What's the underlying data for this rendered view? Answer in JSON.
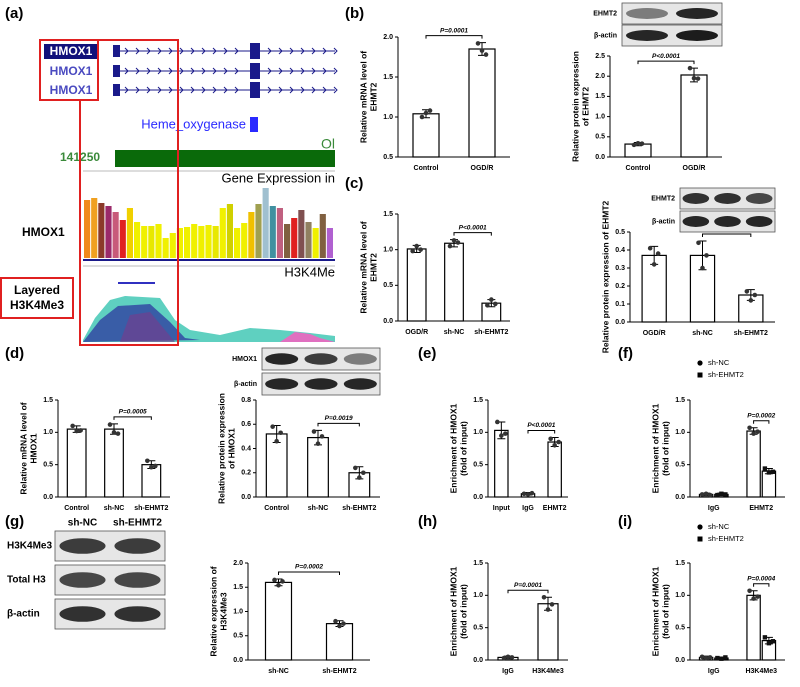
{
  "panel_a": {
    "label": "(a)",
    "transcripts": [
      "HMOX1",
      "HMOX1",
      "HMOX1"
    ],
    "domain": "Heme_oxygenase",
    "track_label": "Ol",
    "position": "141250",
    "expression_title": "Gene Expression in",
    "expression": {
      "name": "HMOX1",
      "values": [
        58,
        60,
        55,
        52,
        46,
        38,
        50,
        36,
        32,
        32,
        34,
        20,
        25,
        30,
        31,
        34,
        32,
        33,
        32,
        50,
        54,
        30,
        35,
        46,
        54,
        70,
        52,
        50,
        34,
        40,
        48,
        36,
        30,
        44,
        30
      ],
      "colors": [
        "#f08a1c",
        "#f0a020",
        "#8b3a2a",
        "#9b2a6a",
        "#c85a7a",
        "#e02020",
        "#f0d000",
        "#f0f000",
        "#f0f000",
        "#e8e800",
        "#f0f000",
        "#f0f000",
        "#f0f000",
        "#f0f000",
        "#f0f000",
        "#f0f000",
        "#f0f000",
        "#f0f000",
        "#e8e800",
        "#f0f000",
        "#d0d000",
        "#f0f000",
        "#f0f000",
        "#f0c000",
        "#a0a050",
        "#a0c0d0",
        "#4090a0",
        "#c06080",
        "#806040",
        "#e02020",
        "#805050",
        "#908060",
        "#f0f000",
        "#806040",
        "#b060d0"
      ]
    },
    "histone_track": "H3K4Me",
    "layered_label": [
      "Layered",
      "H3K4Me3"
    ]
  },
  "chart_data": [
    {
      "type": "bar",
      "panel": "(b)",
      "ylabel": [
        "Relative mRNA level of",
        "EHMT2"
      ],
      "categories": [
        "Control",
        "OGD/R"
      ],
      "values": [
        1.04,
        1.85
      ],
      "errors": [
        0.05,
        0.08
      ],
      "points": [
        [
          1.0,
          1.05,
          1.08
        ],
        [
          1.92,
          1.83,
          1.78
        ]
      ],
      "color": "#ffffff",
      "ylim": [
        0.5,
        2.0
      ],
      "yticks": [
        0.5,
        {
          "value": 1,
          "label": "1.0"
        },
        1.5,
        {
          "value": 2,
          "label": "2.0"
        }
      ],
      "annotation": {
        "text": "P=0.0001",
        "between": [
          "Control",
          "OGD/R"
        ]
      }
    },
    {
      "type": "bar",
      "ylabel": [
        "Relative protein expression",
        "of EHMT2"
      ],
      "categories": [
        "Control",
        "OGD/R"
      ],
      "values": [
        0.32,
        2.03
      ],
      "errors": [
        0.04,
        0.17
      ],
      "points": [
        [
          0.3,
          0.34,
          0.33
        ],
        [
          2.2,
          1.95,
          1.94
        ]
      ],
      "color": "#ffffff",
      "ylim": [
        0,
        2.5
      ],
      "yticks": [
        {
          "value": 0,
          "label": "0.0"
        },
        0.5,
        {
          "value": 1,
          "label": "1.0"
        },
        1.5,
        {
          "value": 2,
          "label": "2.0"
        },
        2.5
      ],
      "annotation": {
        "text": "P<0.0001",
        "between": [
          "Control",
          "OGD/R"
        ]
      },
      "blot": {
        "rows": [
          "EHMT2",
          "β-actin"
        ]
      }
    },
    {
      "type": "bar",
      "panel": "(c)",
      "ylabel": [
        "Relative mRNA level of",
        "EHMT2"
      ],
      "categories": [
        "OGD/R",
        "sh-NC",
        "sh-EHMT2"
      ],
      "values": [
        1.01,
        1.09,
        0.25
      ],
      "errors": [
        0.05,
        0.05,
        0.05
      ],
      "points": [
        [
          0.98,
          1.05,
          1.0
        ],
        [
          1.05,
          1.13,
          1.1
        ],
        [
          0.22,
          0.3,
          0.24
        ]
      ],
      "color": "#ffffff",
      "ylim": [
        0,
        1.5
      ],
      "yticks": [
        {
          "value": 0,
          "label": "0.0"
        },
        0.5,
        {
          "value": 1,
          "label": "1.0"
        },
        1.5
      ],
      "annotation": {
        "text": "P<0.0001",
        "between": [
          "sh-NC",
          "sh-EHMT2"
        ]
      }
    },
    {
      "type": "bar",
      "ylabel": [
        "Relative protein expression of EHMT2"
      ],
      "categories": [
        "OGD/R",
        "sh-NC",
        "sh-EHMT2"
      ],
      "values": [
        0.37,
        0.37,
        0.15
      ],
      "errors": [
        0.05,
        0.08,
        0.03
      ],
      "points": [
        [
          0.41,
          0.32,
          0.38
        ],
        [
          0.44,
          0.3,
          0.37
        ],
        [
          0.17,
          0.12,
          0.15
        ]
      ],
      "color": "#ffffff",
      "ylim": [
        0,
        0.5
      ],
      "yticks": [
        {
          "value": 0,
          "label": "0.0"
        },
        0.1,
        0.2,
        0.3,
        0.4,
        0.5
      ],
      "annotation": {
        "text": "P=0.0066",
        "between": [
          "sh-NC",
          "sh-EHMT2"
        ]
      },
      "blot": {
        "rows": [
          "EHMT2",
          "β-actin"
        ]
      }
    },
    {
      "type": "bar",
      "panel": "(d)",
      "ylabel": [
        "Relative mRNA level of",
        "HMOX1"
      ],
      "categories": [
        "Control",
        "sh-NC",
        "sh-EHMT2"
      ],
      "values": [
        1.05,
        1.05,
        0.5
      ],
      "errors": [
        0.05,
        0.08,
        0.06
      ],
      "points": [
        [
          1.1,
          1.02,
          1.03
        ],
        [
          1.12,
          1.0,
          0.98
        ],
        [
          0.56,
          0.46,
          0.48
        ]
      ],
      "color": "#ffffff",
      "ylim": [
        0,
        1.5
      ],
      "yticks": [
        {
          "value": 0,
          "label": "0.0"
        },
        0.5,
        {
          "value": 1,
          "label": "1.0"
        },
        1.5
      ],
      "annotation": {
        "text": "P=0.0005",
        "between": [
          "sh-NC",
          "sh-EHMT2"
        ]
      }
    },
    {
      "type": "bar",
      "ylabel": [
        "Relative protein expression",
        "of HMOX1"
      ],
      "categories": [
        "Control",
        "sh-NC",
        "sh-EHMT2"
      ],
      "values": [
        0.52,
        0.49,
        0.2
      ],
      "errors": [
        0.07,
        0.06,
        0.05
      ],
      "points": [
        [
          0.58,
          0.46,
          0.53
        ],
        [
          0.54,
          0.44,
          0.5
        ],
        [
          0.24,
          0.16,
          0.2
        ]
      ],
      "color": "#ffffff",
      "ylim": [
        0,
        0.8
      ],
      "yticks": [
        {
          "value": 0,
          "label": "0.0"
        },
        0.2,
        0.4,
        0.6,
        0.8
      ],
      "annotation": {
        "text": "P=0.0019",
        "between": [
          "sh-NC",
          "sh-EHMT2"
        ]
      },
      "blot": {
        "rows": [
          "HMOX1",
          "β-actin"
        ]
      }
    },
    {
      "type": "bar",
      "panel": "(e)",
      "ylabel": [
        "Enrichment of HMOX1",
        "(fold of input)"
      ],
      "categories": [
        "Input",
        "IgG",
        "EHMT2"
      ],
      "values": [
        1.03,
        0.05,
        0.85
      ],
      "errors": [
        0.13,
        0.02,
        0.07
      ],
      "points": [
        [
          1.16,
          0.95,
          0.98
        ],
        [
          0.05,
          0.04,
          0.06
        ],
        [
          0.9,
          0.8,
          0.85
        ]
      ],
      "color": "#ffffff",
      "ylim": [
        0,
        1.5
      ],
      "yticks": [
        {
          "value": 0,
          "label": "0.0"
        },
        0.5,
        {
          "value": 1,
          "label": "1.0"
        },
        1.5
      ],
      "annotation": {
        "text": "P<0.0001",
        "between": [
          "IgG",
          "EHMT2"
        ]
      }
    },
    {
      "type": "bar",
      "panel": "(f)",
      "ylabel": [
        "Enrichment of HMOX1",
        "(fold of input)"
      ],
      "categories": [
        "IgG",
        "EHMT2"
      ],
      "color": "#ffffff",
      "series": [
        {
          "name": "sh-NC",
          "marker": "circle",
          "color": "#000000",
          "values": [
            0.04,
            1.02
          ],
          "errors": [
            0.02,
            0.05
          ],
          "points": [
            [
              0.04,
              0.05,
              0.03
            ],
            [
              1.07,
              0.98,
              1.01
            ]
          ]
        },
        {
          "name": "sh-EHMT2",
          "marker": "square",
          "color": "#000000",
          "values": [
            0.04,
            0.4
          ],
          "errors": [
            0.02,
            0.04
          ],
          "points": [
            [
              0.03,
              0.05,
              0.04
            ],
            [
              0.44,
              0.38,
              0.39
            ]
          ]
        }
      ],
      "ylim": [
        0,
        1.5
      ],
      "yticks": [
        {
          "value": 0,
          "label": "0.0"
        },
        0.5,
        {
          "value": 1,
          "label": "1.0"
        },
        1.5
      ],
      "annotation": {
        "text": "P=0.0002",
        "category": "EHMT2",
        "between": [
          "sh-NC",
          "sh-EHMT2"
        ]
      }
    },
    {
      "type": "bar",
      "panel": "(g)",
      "ylabel": [
        "Relative expression of",
        "H3K4Me3"
      ],
      "categories": [
        "sh-NC",
        "sh-EHMT2"
      ],
      "values": [
        1.6,
        0.75
      ],
      "errors": [
        0.07,
        0.06
      ],
      "points": [
        [
          1.65,
          1.54,
          1.62
        ],
        [
          0.8,
          0.7,
          0.75
        ]
      ],
      "color": "#ffffff",
      "ylim": [
        0,
        2.0
      ],
      "yticks": [
        {
          "value": 0,
          "label": "0.0"
        },
        0.5,
        {
          "value": 1,
          "label": "1.0"
        },
        1.5,
        {
          "value": 2,
          "label": "2.0"
        }
      ],
      "annotation": {
        "text": "P=0.0002",
        "between": [
          "sh-NC",
          "sh-EHMT2"
        ]
      },
      "blot": {
        "rows": [
          "H3K4Me3",
          "Total H3",
          "β-actin"
        ],
        "columns": [
          "sh-NC",
          "sh-EHMT2"
        ]
      }
    },
    {
      "type": "bar",
      "panel": "(h)",
      "ylabel": [
        "Enrichment of HMOX1",
        "(fold of input)"
      ],
      "categories": [
        "IgG",
        "H3K4Me3"
      ],
      "values": [
        0.04,
        0.87
      ],
      "errors": [
        0.02,
        0.1
      ],
      "points": [
        [
          0.03,
          0.05,
          0.04
        ],
        [
          0.97,
          0.78,
          0.86
        ]
      ],
      "color": "#ffffff",
      "ylim": [
        0,
        1.5
      ],
      "yticks": [
        {
          "value": 0,
          "label": "0.0"
        },
        0.5,
        {
          "value": 1,
          "label": "1.0"
        },
        1.5
      ],
      "annotation": {
        "text": "P=0.0001",
        "between": [
          "IgG",
          "H3K4Me3"
        ]
      }
    },
    {
      "type": "bar",
      "panel": "(i)",
      "ylabel": [
        "Enrichment of HMOX1",
        "(fold of input)"
      ],
      "categories": [
        "IgG",
        "H3K4Me3"
      ],
      "color": "#ffffff",
      "series": [
        {
          "name": "sh-NC",
          "marker": "circle",
          "color": "#000000",
          "values": [
            0.04,
            1.0
          ],
          "errors": [
            0.02,
            0.07
          ],
          "points": [
            [
              0.05,
              0.03,
              0.04
            ],
            [
              1.07,
              0.95,
              0.98
            ]
          ]
        },
        {
          "name": "sh-EHMT2",
          "marker": "square",
          "color": "#000000",
          "values": [
            0.03,
            0.3
          ],
          "errors": [
            0.01,
            0.05
          ],
          "points": [
            [
              0.03,
              0.02,
              0.04
            ],
            [
              0.35,
              0.26,
              0.29
            ]
          ]
        }
      ],
      "ylim": [
        0,
        1.5
      ],
      "yticks": [
        {
          "value": 0,
          "label": "0.0"
        },
        0.5,
        {
          "value": 1,
          "label": "1.0"
        },
        1.5
      ],
      "annotation": {
        "text": "P=0.0004",
        "category": "H3K4Me3",
        "between": [
          "sh-NC",
          "sh-EHMT2"
        ]
      }
    }
  ]
}
